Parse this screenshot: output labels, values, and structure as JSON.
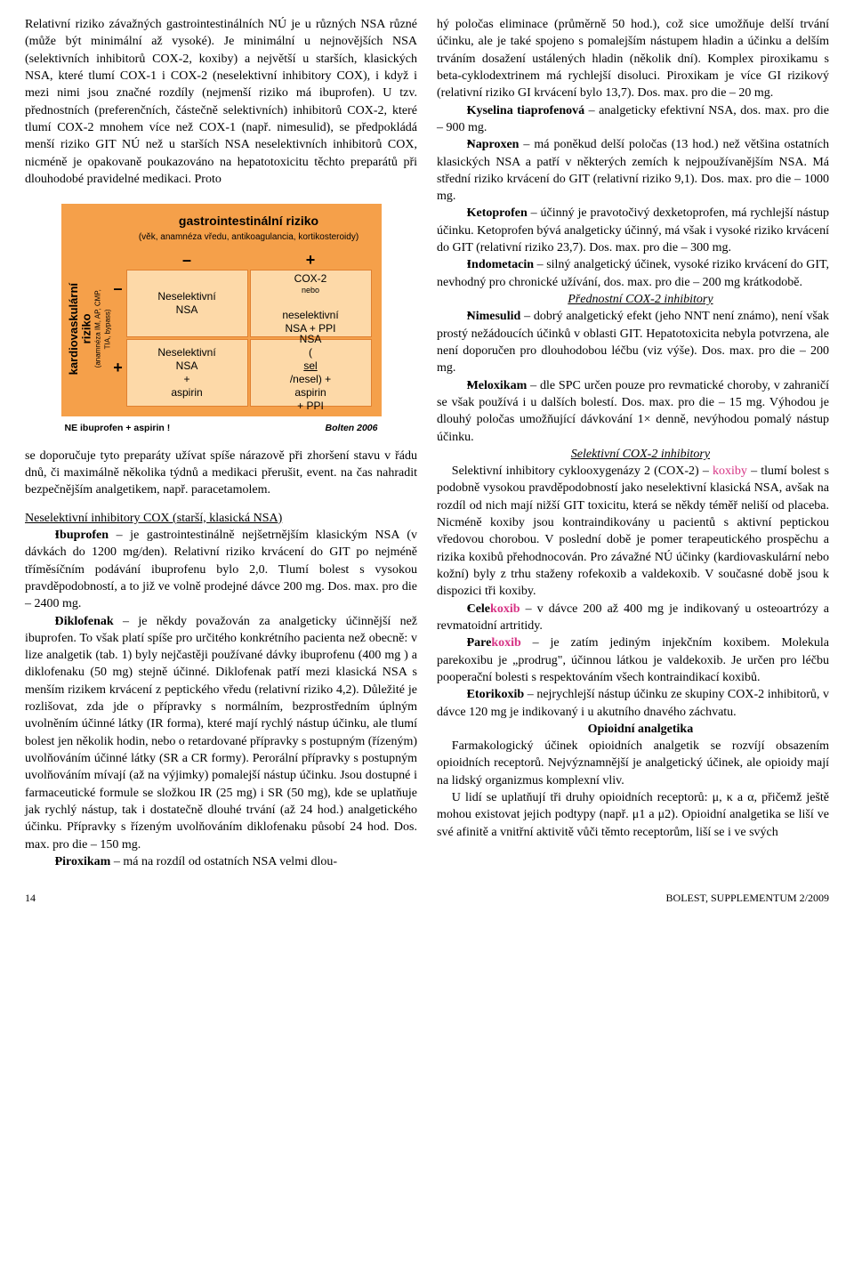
{
  "colors": {
    "chart_bg": "#f5a04a",
    "cell_bg": "#fdd9a8",
    "cell_border": "#e08030",
    "koxib": "#d63384"
  },
  "left": {
    "p1": "Relativní riziko závažných gastrointestinálních NÚ je u různých NSA různé (může být minimální až vysoké). Je minimální u nejnovějších NSA (selektivních inhibitorů COX-2, koxiby) a největší u starších, klasických NSA, které tlumí COX-1 i COX-2 (neselektivní inhibitory COX), i když i mezi nimi jsou značné rozdíly (nejmenší riziko má ibuprofen). U tzv. přednostních (preferenčních, částečně selektivních) inhibitorů COX-2, které tlumí COX-2 mnohem více než COX-1 (např. nimesulid), se předpokládá menší riziko GIT NÚ než u starších NSA neselektivních inhibitorů COX, nicméně je opakovaně poukazováno na hepatotoxicitu těchto preparátů při dlouhodobé pravidelné medikaci. Proto",
    "p2": "se doporučuje tyto preparáty užívat spíše nárazově při zhoršení stavu v řádu dnů, či maximálně několika týdnů a medikaci přerušit, event. na čas nahradit bezpečnějším analgetikem, např. paracetamolem.",
    "sec1": "Neselektivní inhibitory COX (starší, klasická NSA)",
    "b1": "Ibuprofen – je gastrointestinálně nejšetrnějším klasickým NSA (v dávkách do 1200 mg/den). Relativní riziko krvácení do GIT po nejméně tříměsíčním podávání ibuprofenu bylo 2,0. Tlumí bolest s vysokou pravděpodobností, a to již ve volně prodejné dávce 200 mg. Dos. max. pro die – 2400 mg.",
    "b2a": "Diklofenak – je někdy považován za analgeticky účinnější než ibuprofen. To však platí spíše pro určitého konkrétního pacienta než obecně: v lize analgetik (tab. 1) byly nejčastěji používané dávky ibuprofenu (400 mg ) a diklofenaku (50 mg) stejně účinné. Diklofenak patří mezi klasická NSA s menším rizikem krvácení z peptického vředu (relativní riziko 4,2). Důležité je rozlišovat, zda jde o přípravky s normálním, bezprostředním úplným uvolněním účinné látky (IR forma), které mají rychlý nástup účinku, ale tlumí bolest jen několik hodin, nebo o retardované přípravky s postupným (řízeným) uvolňováním účinné látky (SR a CR formy). Perorální přípravky s postupným uvolňováním mívají (až na výjimky) pomalejší nástup účinku. Jsou dostupné i farmaceutické formule se složkou IR (25 mg) i SR (50 mg), kde se uplatňuje jak rychlý nástup, tak i dostatečně dlouhé trvání (až 24 hod.) analgetického účinku. Přípravky s řízeným uvolňováním diklofenaku působí 24 hod. Dos. max. pro die – 150 mg.",
    "b3": "Piroxikam – má na rozdíl od ostatních NSA velmi dlou-"
  },
  "right": {
    "p1": "hý poločas eliminace (průměrně 50 hod.), což sice umožňuje delší trvání účinku, ale je také spojeno s pomalejším nástupem hladin a účinku a delším trváním dosažení ustálených hladin (několik dní). Komplex piroxikamu s beta-cyklodextrinem má rychlejší disoluci. Piroxikam je více GI rizikový (relativní riziko GI krvácení bylo 13,7). Dos. max. pro die – 20 mg.",
    "b1": "Kyselina tiaprofenová – analgeticky efektivní NSA, dos. max. pro die – 900 mg.",
    "b2": "Naproxen – má poněkud delší poločas (13 hod.) než většina ostatních klasických NSA a patří v některých zemích k nejpoužívanějším NSA. Má střední riziko krvácení do GIT (relativní riziko 9,1). Dos. max. pro die – 1000 mg.",
    "b3": "Ketoprofen – účinný je pravotočivý dexketoprofen, má rychlejší nástup účinku. Ketoprofen bývá analgeticky účinný, má však i vysoké riziko krvácení do GIT (relativní riziko 23,7). Dos. max. pro die – 300 mg.",
    "b4": "Indometacin – silný analgetický účinek, vysoké riziko krvácení do GIT, nevhodný pro chronické užívání, dos. max. pro die – 200 mg krátkodobě.",
    "sec2": "Přednostní COX-2 inhibitory",
    "b5": "Nimesulid – dobrý analgetický efekt (jeho NNT není známo), není však prostý nežádoucích účinků v oblasti GIT. Hepatotoxicita nebyla potvrzena, ale není doporučen pro dlouhodobou léčbu (viz výše). Dos. max. pro die – 200 mg.",
    "b6": "Meloxikam – dle SPC určen pouze pro revmatické choroby, v zahraničí se však používá i u dalších bolestí. Dos. max. pro die – 15 mg. Výhodou je dlouhý poločas umožňující dávkování 1× denně, nevýhodou pomalý nástup účinku.",
    "sec3": "Selektivní COX-2 inhibitory",
    "p2a": "Selektivní inhibitory cyklooxygenázy 2 (COX-2) – ",
    "p2k": "koxiby",
    "p2b": " – tlumí bolest s podobně vysokou pravděpodobností jako neselektivní klasická NSA, avšak na rozdíl od nich mají nižší GIT toxicitu, která se někdy téměř neliší od placeba. Nicméně koxiby jsou kontraindikovány u pacientů s aktivní peptickou vředovou chorobou. V poslední době je pomer terapeutického prospěchu a rizika koxibů přehodnocován. Pro závažné NÚ účinky (kardiovaskulární nebo kožní) byly z trhu staženy rofekoxib a valdekoxib. V současné době jsou k dispozici tři koxiby.",
    "b7a": "Cele",
    "b7k": "koxib",
    "b7b": " – v dávce 200 až 400 mg je indikovaný u osteoartrózy a revmatoidní artritidy.",
    "b8a": "Pare",
    "b8k": "koxib",
    "b8b": " – je zatím jediným injekčním koxibem. Molekula parekoxibu je „prodrug\", účinnou látkou je valdekoxib. Je určen pro léčbu pooperační bolesti s respektováním všech kontraindikací koxibů.",
    "b9": "Etorikoxib – nejrychlejší nástup účinku ze skupiny COX-2 inhibitorů, v dávce 120 mg je indikovaný i u akutního dnavého záchvatu.",
    "sec4": "Opioidní analgetika",
    "p3": "Farmakologický účinek opioidních analgetik se rozvíjí obsazením opioidních receptorů. Nejvýznamnější je analgetický účinek, ale opioidy mají na lidský organizmus komplexní vliv.",
    "p4": "U lidí se uplatňují tři druhy opioidních receptorů: μ, κ a α, přičemž ještě mohou existovat jejich podtypy (např. μ1 a μ2). Opioidní analgetika se liší ve své afinitě a vnitřní aktivitě vůči těmto receptorům, liší se i ve svých"
  },
  "chart": {
    "title": "gastrointestinální riziko",
    "subtitle": "(věk, anamnéza vředu, antikoagulancia, kortikosteroidy)",
    "xaxis_minus": "–",
    "xaxis_plus": "+",
    "yaxis_big": "kardiovaskulární\nriziko",
    "yaxis_small": "(anamnéza IM, AP, CMP,\nTIA, bypass)",
    "y_minus": "–",
    "y_plus": "+",
    "cell_tl": "Neselektivní\nNSA",
    "cell_tr_1": "COX-2",
    "cell_tr_2": "nebo",
    "cell_tr_3": "neselektivní\nNSA + PPI",
    "cell_bl": "Neselektivní\nNSA\n+\naspirin",
    "cell_br_1": "NSA",
    "cell_br_2": "(sel/nesel) +",
    "cell_br_3": "aspirin",
    "cell_br_4": "+ PPI",
    "footnote_left": "NE ibuprofen + aspirin !",
    "footnote_right": "Bolten 2006"
  },
  "footer": {
    "page": "14",
    "journal": "BOLEST, SUPPLEMENTUM 2/2009"
  }
}
